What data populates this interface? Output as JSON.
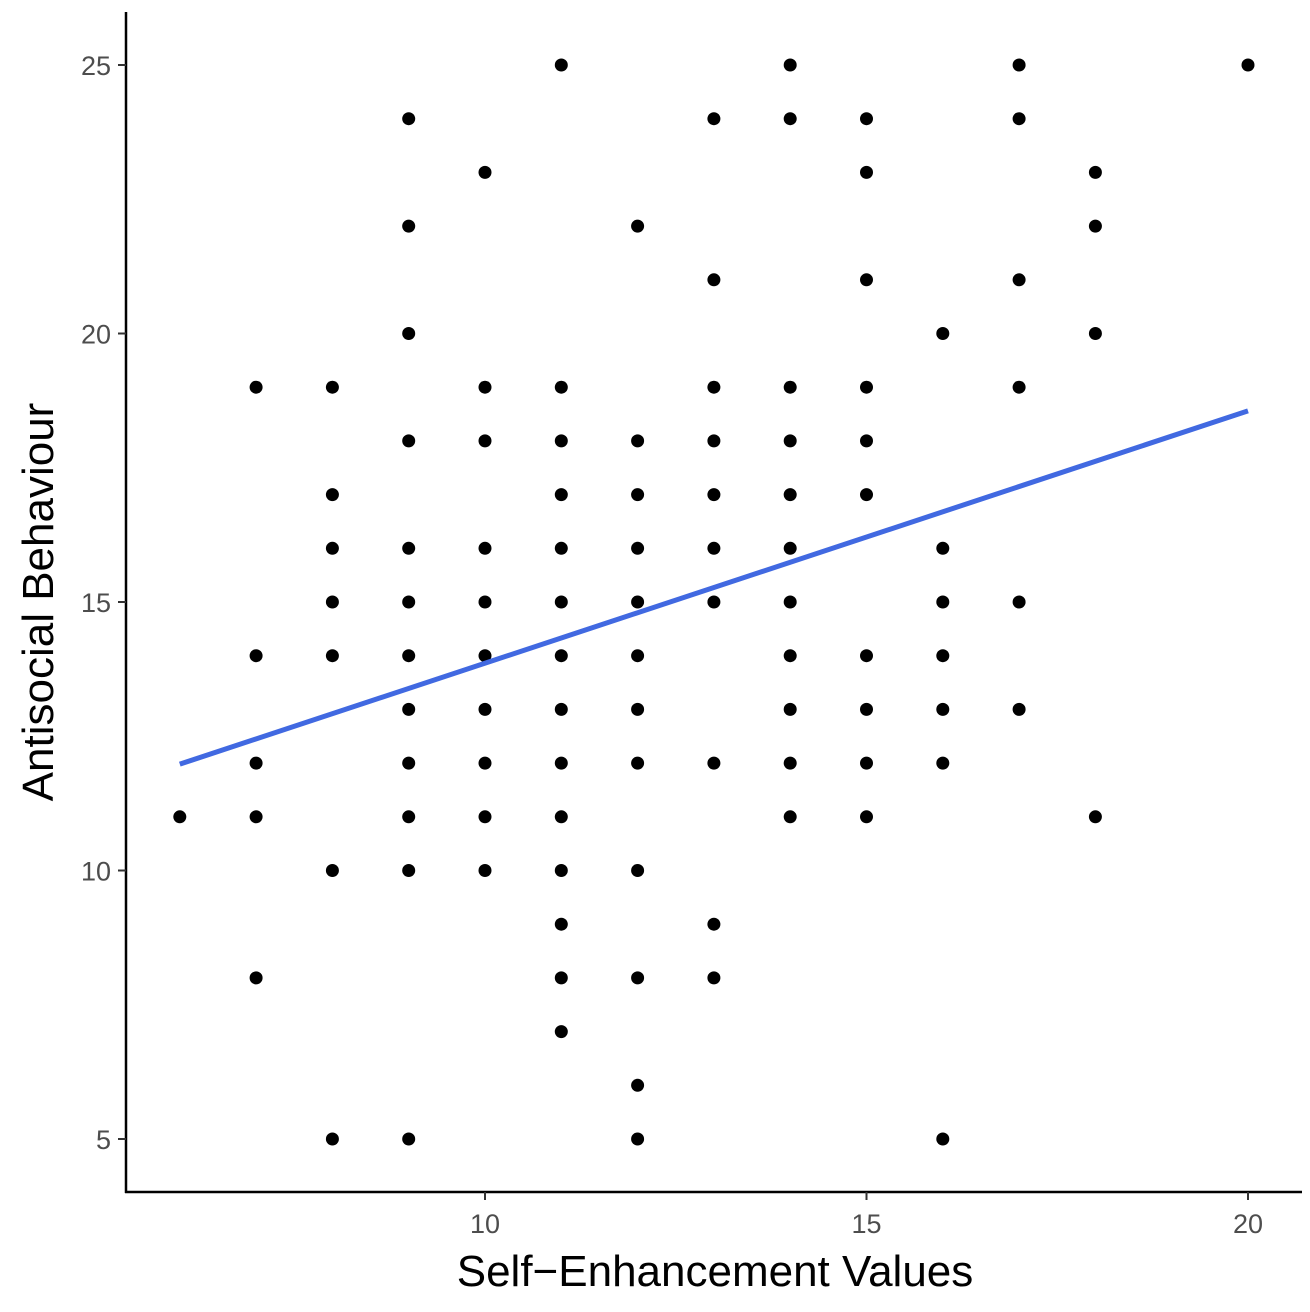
{
  "chart_data": {
    "type": "scatter",
    "title": "",
    "xlabel": "Self−Enhancement Values",
    "ylabel": "Antisocial Behaviour",
    "xlim": [
      5.5,
      20.7
    ],
    "ylim": [
      4,
      26
    ],
    "xticks": [
      10,
      15,
      20
    ],
    "yticks": [
      5,
      10,
      15,
      20,
      25
    ],
    "grid": false,
    "legend": "none",
    "point_color": "#000000",
    "points": [
      [
        6,
        11
      ],
      [
        7,
        19
      ],
      [
        7,
        14
      ],
      [
        7,
        12
      ],
      [
        7,
        11
      ],
      [
        7,
        8
      ],
      [
        8,
        19
      ],
      [
        8,
        17
      ],
      [
        8,
        16
      ],
      [
        8,
        15
      ],
      [
        8,
        14
      ],
      [
        8,
        10
      ],
      [
        8,
        5
      ],
      [
        9,
        24
      ],
      [
        9,
        22
      ],
      [
        9,
        20
      ],
      [
        9,
        18
      ],
      [
        9,
        16
      ],
      [
        9,
        15
      ],
      [
        9,
        14
      ],
      [
        9,
        13
      ],
      [
        9,
        12
      ],
      [
        9,
        11
      ],
      [
        9,
        10
      ],
      [
        9,
        5
      ],
      [
        10,
        23
      ],
      [
        10,
        19
      ],
      [
        10,
        18
      ],
      [
        10,
        16
      ],
      [
        10,
        15
      ],
      [
        10,
        14
      ],
      [
        10,
        13
      ],
      [
        10,
        12
      ],
      [
        10,
        11
      ],
      [
        10,
        10
      ],
      [
        11,
        25
      ],
      [
        11,
        19
      ],
      [
        11,
        18
      ],
      [
        11,
        17
      ],
      [
        11,
        16
      ],
      [
        11,
        15
      ],
      [
        11,
        14
      ],
      [
        11,
        13
      ],
      [
        11,
        12
      ],
      [
        11,
        11
      ],
      [
        11,
        10
      ],
      [
        11,
        9
      ],
      [
        11,
        8
      ],
      [
        11,
        7
      ],
      [
        12,
        22
      ],
      [
        12,
        18
      ],
      [
        12,
        17
      ],
      [
        12,
        16
      ],
      [
        12,
        15
      ],
      [
        12,
        14
      ],
      [
        12,
        13
      ],
      [
        12,
        12
      ],
      [
        12,
        10
      ],
      [
        12,
        8
      ],
      [
        12,
        6
      ],
      [
        12,
        5
      ],
      [
        13,
        24
      ],
      [
        13,
        21
      ],
      [
        13,
        19
      ],
      [
        13,
        18
      ],
      [
        13,
        17
      ],
      [
        13,
        16
      ],
      [
        13,
        15
      ],
      [
        13,
        12
      ],
      [
        13,
        9
      ],
      [
        13,
        8
      ],
      [
        14,
        25
      ],
      [
        14,
        24
      ],
      [
        14,
        19
      ],
      [
        14,
        18
      ],
      [
        14,
        17
      ],
      [
        14,
        16
      ],
      [
        14,
        15
      ],
      [
        14,
        14
      ],
      [
        14,
        13
      ],
      [
        14,
        12
      ],
      [
        14,
        11
      ],
      [
        15,
        24
      ],
      [
        15,
        23
      ],
      [
        15,
        21
      ],
      [
        15,
        19
      ],
      [
        15,
        18
      ],
      [
        15,
        17
      ],
      [
        15,
        14
      ],
      [
        15,
        13
      ],
      [
        15,
        12
      ],
      [
        15,
        11
      ],
      [
        16,
        20
      ],
      [
        16,
        16
      ],
      [
        16,
        15
      ],
      [
        16,
        14
      ],
      [
        16,
        13
      ],
      [
        16,
        12
      ],
      [
        16,
        5
      ],
      [
        17,
        25
      ],
      [
        17,
        24
      ],
      [
        17,
        21
      ],
      [
        17,
        19
      ],
      [
        17,
        15
      ],
      [
        17,
        13
      ],
      [
        18,
        23
      ],
      [
        18,
        22
      ],
      [
        18,
        20
      ],
      [
        18,
        11
      ],
      [
        20,
        25
      ]
    ],
    "trend_line": {
      "color": "#4169E1",
      "method": "linear",
      "from": [
        6,
        11.98
      ],
      "to": [
        20,
        18.56
      ]
    }
  }
}
